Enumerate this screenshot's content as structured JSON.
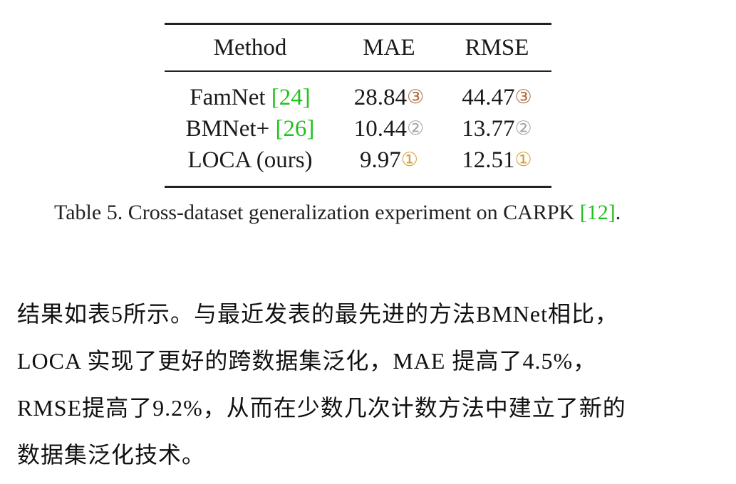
{
  "table": {
    "headers": [
      "Method",
      "MAE",
      "RMSE"
    ],
    "rows": [
      {
        "method": "FamNet ",
        "cite": "[24]",
        "mae": "28.84",
        "mae_rank": "③",
        "rmse": "44.47",
        "rmse_rank": "③"
      },
      {
        "method": "BMNet+ ",
        "cite": "[26]",
        "mae": "10.44",
        "mae_rank": "②",
        "rmse": "13.77",
        "rmse_rank": "②"
      },
      {
        "method": "LOCA (ours)",
        "cite": "",
        "mae": "9.97",
        "mae_rank": "①",
        "rmse": "12.51",
        "rmse_rank": "①"
      }
    ],
    "caption": {
      "text": "Table 5. Cross-dataset generalization experiment on CARPK ",
      "cite": "[12]",
      "end": "."
    }
  },
  "colors": {
    "citation": "#22c21e",
    "rank_1": "#d4a23a",
    "rank_2": "#a6a6a6",
    "rank_3": "#b07048"
  },
  "paragraph": {
    "lines": [
      "结果如表5所示。与最近发表的最先进的方法BMNet相比，",
      "LOCA 实现了更好的跨数据集泛化，MAE 提高了4.5%，",
      "RMSE提高了9.2%，从而在少数几次计数方法中建立了新的",
      "数据集泛化技术。"
    ]
  }
}
